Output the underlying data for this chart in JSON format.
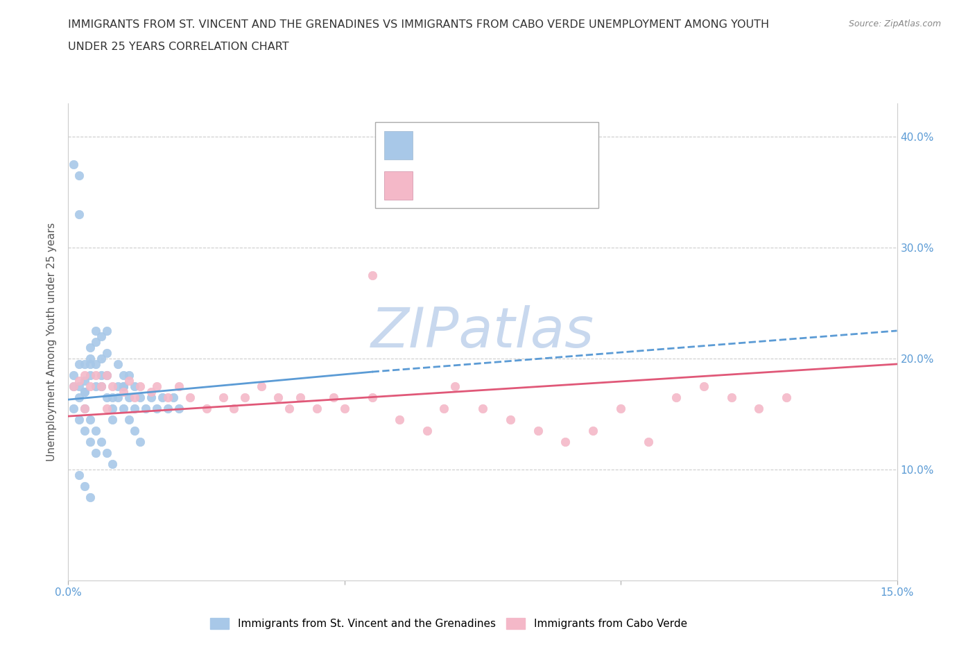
{
  "title_line1": "IMMIGRANTS FROM ST. VINCENT AND THE GRENADINES VS IMMIGRANTS FROM CABO VERDE UNEMPLOYMENT AMONG YOUTH",
  "title_line2": "UNDER 25 YEARS CORRELATION CHART",
  "source": "Source: ZipAtlas.com",
  "ylabel": "Unemployment Among Youth under 25 years",
  "xlim": [
    0.0,
    0.15
  ],
  "ylim": [
    0.0,
    0.43
  ],
  "xticks": [
    0.0,
    0.05,
    0.1,
    0.15
  ],
  "xticklabels": [
    "0.0%",
    "",
    "",
    "15.0%"
  ],
  "yticks_right": [
    0.1,
    0.2,
    0.3,
    0.4
  ],
  "yticklabels_right": [
    "10.0%",
    "20.0%",
    "30.0%",
    "40.0%"
  ],
  "color_blue": "#a8c8e8",
  "color_pink": "#f4b8c8",
  "color_trendline_blue": "#5b9bd5",
  "color_trendline_pink": "#e05878",
  "watermark_text": "ZIPatlas",
  "watermark_color": "#c8d8ee",
  "label1": "Immigrants from St. Vincent and the Grenadines",
  "label2": "Immigrants from Cabo Verde",
  "sv_x": [
    0.001,
    0.001,
    0.002,
    0.002,
    0.002,
    0.003,
    0.003,
    0.003,
    0.004,
    0.004,
    0.004,
    0.004,
    0.005,
    0.005,
    0.005,
    0.005,
    0.006,
    0.006,
    0.006,
    0.007,
    0.007,
    0.007,
    0.008,
    0.008,
    0.009,
    0.009,
    0.01,
    0.01,
    0.011,
    0.011,
    0.012,
    0.012,
    0.013,
    0.014,
    0.015,
    0.016,
    0.017,
    0.018,
    0.019,
    0.02,
    0.001,
    0.002,
    0.002,
    0.003,
    0.003,
    0.004,
    0.005,
    0.006,
    0.007,
    0.008,
    0.009,
    0.01,
    0.011,
    0.012,
    0.013,
    0.001,
    0.002,
    0.003,
    0.004,
    0.005,
    0.002,
    0.003,
    0.004,
    0.006,
    0.007,
    0.008,
    0.01
  ],
  "sv_y": [
    0.185,
    0.175,
    0.195,
    0.175,
    0.165,
    0.195,
    0.18,
    0.17,
    0.21,
    0.2,
    0.195,
    0.185,
    0.225,
    0.215,
    0.195,
    0.175,
    0.22,
    0.2,
    0.185,
    0.225,
    0.205,
    0.185,
    0.165,
    0.145,
    0.195,
    0.175,
    0.185,
    0.175,
    0.185,
    0.165,
    0.175,
    0.155,
    0.165,
    0.155,
    0.165,
    0.155,
    0.165,
    0.155,
    0.165,
    0.155,
    0.375,
    0.365,
    0.33,
    0.17,
    0.155,
    0.145,
    0.135,
    0.125,
    0.115,
    0.105,
    0.165,
    0.155,
    0.145,
    0.135,
    0.125,
    0.155,
    0.145,
    0.135,
    0.125,
    0.115,
    0.095,
    0.085,
    0.075,
    0.175,
    0.165,
    0.155,
    0.175
  ],
  "cv_x": [
    0.001,
    0.002,
    0.003,
    0.004,
    0.005,
    0.006,
    0.007,
    0.008,
    0.01,
    0.011,
    0.012,
    0.013,
    0.015,
    0.016,
    0.018,
    0.02,
    0.022,
    0.025,
    0.028,
    0.03,
    0.032,
    0.035,
    0.038,
    0.04,
    0.042,
    0.045,
    0.048,
    0.05,
    0.055,
    0.06,
    0.065,
    0.068,
    0.07,
    0.075,
    0.08,
    0.085,
    0.09,
    0.095,
    0.1,
    0.105,
    0.11,
    0.115,
    0.12,
    0.125,
    0.13,
    0.003,
    0.007,
    0.055
  ],
  "cv_y": [
    0.175,
    0.18,
    0.185,
    0.175,
    0.185,
    0.175,
    0.185,
    0.175,
    0.17,
    0.18,
    0.165,
    0.175,
    0.17,
    0.175,
    0.165,
    0.175,
    0.165,
    0.155,
    0.165,
    0.155,
    0.165,
    0.175,
    0.165,
    0.155,
    0.165,
    0.155,
    0.165,
    0.155,
    0.165,
    0.145,
    0.135,
    0.155,
    0.175,
    0.155,
    0.145,
    0.135,
    0.125,
    0.135,
    0.155,
    0.125,
    0.165,
    0.175,
    0.165,
    0.155,
    0.165,
    0.155,
    0.155,
    0.275
  ],
  "sv_trendline_x": [
    0.0,
    0.055
  ],
  "sv_trendline_y": [
    0.163,
    0.188
  ],
  "cv_trendline_x": [
    0.0,
    0.15
  ],
  "cv_trendline_y": [
    0.148,
    0.195
  ]
}
